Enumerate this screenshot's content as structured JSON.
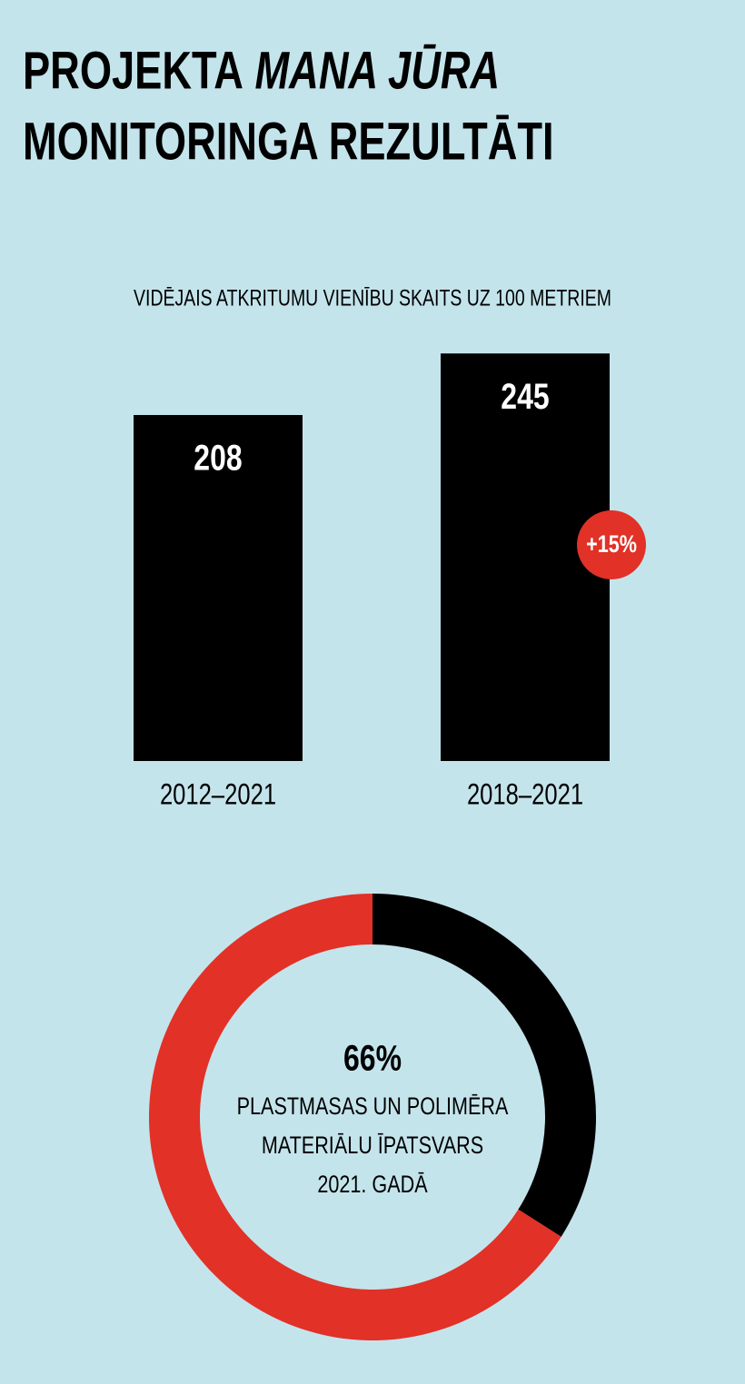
{
  "title": [
    "PROJEKTA",
    "MANA JŪRA",
    "MONITORINGA REZULTĀTI"
  ],
  "chart_data": [
    {
      "type": "bar",
      "subtitle": "VIDĒJAIS ATKRITUMU VIENĪBU SKAITS UZ 100 METRIEM",
      "categories": [
        "2012–2021",
        "2018–2021"
      ],
      "values": [
        208,
        245
      ],
      "color": "#000000",
      "annotation": {
        "text": "+15%",
        "color": "#e23127"
      }
    },
    {
      "type": "donut",
      "values": [
        66,
        34
      ],
      "value_labels": [
        "66%",
        null
      ],
      "colors": [
        "#e23127",
        "#000000"
      ],
      "annotation": [
        "PLASTMASAS UN POLIMĒRA",
        "MATERIĀLU ĪPATSVARS",
        "2021. GADĀ"
      ]
    }
  ]
}
